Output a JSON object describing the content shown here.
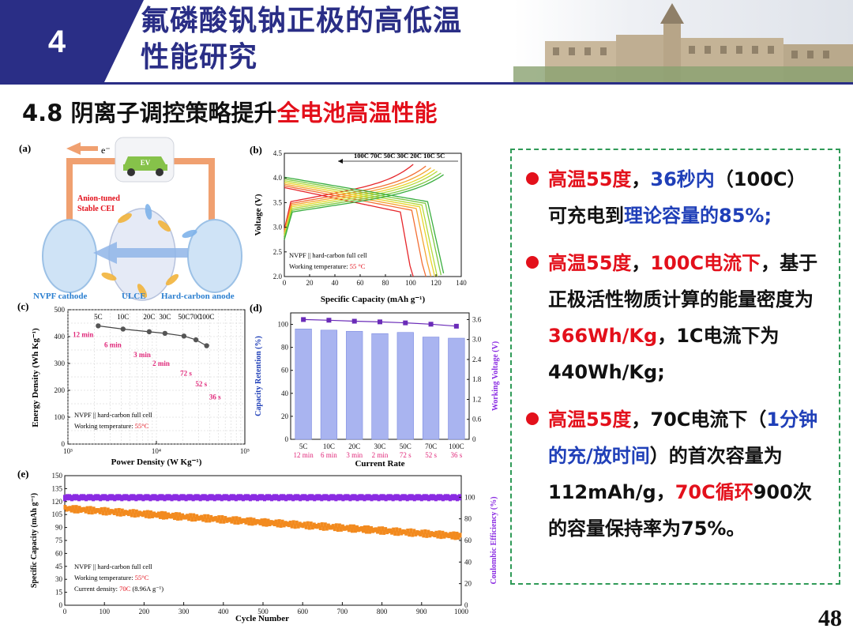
{
  "header": {
    "section_number": "4",
    "title_line1": "氟磷酸钒钠正极的高低温",
    "title_line2": "性能研究"
  },
  "subtitle": {
    "prefix": "4.8 阴离子调控策略提升",
    "highlight": "全电池高温性能"
  },
  "panel_a": {
    "label": "(a)",
    "electron": "e⁻",
    "car_label": "EV",
    "cei_line1": "Anion-tuned",
    "cei_line2": "Stable CEI",
    "cathode_label": "NVPF cathode",
    "electrolyte_label": "ULCE",
    "anode_label": "Hard-carbon anode"
  },
  "panel_b": {
    "label": "(b)",
    "legend": "100C 70C 50C 30C 20C 10C 5C",
    "note1": "NVPF || hard-carbon full cell",
    "note2_prefix": "Working temperature: ",
    "note2_value": "55 °C",
    "xlabel": "Specific Capacity (mAh g⁻¹)",
    "ylabel": "Voltage (V)",
    "xticks": [
      "0",
      "20",
      "40",
      "60",
      "80",
      "100",
      "120",
      "140"
    ],
    "yticks": [
      "2.0",
      "2.5",
      "3.0",
      "3.5",
      "4.0",
      "4.5"
    ]
  },
  "panel_c": {
    "label": "(c)",
    "note1": "NVPF || hard-carbon full cell",
    "note2_prefix": "Working temperature: ",
    "note2_value": "55°C",
    "xlabel": "Power Density (W Kg⁻¹)",
    "ylabel": "Energy Density (Wh Kg⁻¹)",
    "xticks": [
      "10³",
      "10⁴",
      "10⁵"
    ],
    "yticks": [
      "0",
      "100",
      "200",
      "300",
      "400",
      "500"
    ]
  },
  "panel_d": {
    "label": "(d)",
    "xlabel": "Current Rate",
    "ylabel_left": "Capacity Retention (%)",
    "ylabel_right": "Working Voltage (V)",
    "yticks_left": [
      "0",
      "20",
      "40",
      "60",
      "80",
      "100"
    ],
    "yticks_right": [
      "0",
      "0.6",
      "1.2",
      "1.8",
      "2.4",
      "3.0",
      "3.6"
    ]
  },
  "panel_e": {
    "label": "(e)",
    "note1": "NVPF || hard-carbon full cell",
    "note2_prefix": "Working temperature: ",
    "note2_value": "55°C",
    "note3_prefix": "Current density: ",
    "note3_value": "70C",
    "note3_suffix": " (8.96A g⁻¹)",
    "xlabel": "Cycle Number",
    "ylabel_left": "Specific Capacity (mAh g⁻¹)",
    "ylabel_right": "Coulombic Efficiency (%)",
    "xticks": [
      "0",
      "100",
      "200",
      "300",
      "400",
      "500",
      "600",
      "700",
      "800",
      "900",
      "1000"
    ],
    "yticks_left": [
      "0",
      "15",
      "30",
      "45",
      "60",
      "75",
      "90",
      "105",
      "120",
      "135",
      "150"
    ],
    "yticks_right": [
      "0",
      "20",
      "40",
      "60",
      "80",
      "100"
    ]
  },
  "bullets": {
    "b1": {
      "p1": "高温55度",
      "p2": "，",
      "p3": "36秒内",
      "p4": "（100C）可充电到",
      "p5": "理论容量的85%;"
    },
    "b2": {
      "p1": "高温55度",
      "p2": "，",
      "p3": "100C电流下",
      "p4": "，基于正极活性物质计算的能量密度为",
      "p5": "366Wh/Kg",
      "p6": "，1C电流下为440Wh/Kg;"
    },
    "b3": {
      "p1": "高温55度",
      "p2": "，70C电流下（",
      "p3": "1分钟的充/放时间",
      "p4": "）的首次容量为112mAh/g，",
      "p5": "70C循环",
      "p6": "900次的容量保持率为75%。"
    }
  },
  "page_number": "48",
  "colors": {
    "title_blue": "#2a2e86",
    "accent_red": "#e3101b",
    "accent_blue": "#1f3fb8",
    "panel_border": "#2f9a57",
    "bar_fill": "#a9b4f0",
    "voltage_line": "#6a2bb8",
    "capacity_orange": "#f28a1e",
    "ce_purple": "#8a2be2"
  },
  "chart_data": [
    {
      "id": "b",
      "type": "line",
      "xlim": [
        0,
        140
      ],
      "ylim": [
        2.0,
        4.5
      ],
      "series": [
        {
          "name": "100C",
          "color": "#e6262b",
          "capacity": 102
        },
        {
          "name": "70C",
          "color": "#f36f34",
          "capacity": 112
        },
        {
          "name": "50C",
          "color": "#f4a531",
          "capacity": 116
        },
        {
          "name": "30C",
          "color": "#e8d52b",
          "capacity": 119
        },
        {
          "name": "20C",
          "color": "#b5d93a",
          "capacity": 121
        },
        {
          "name": "10C",
          "color": "#7dc840",
          "capacity": 124
        },
        {
          "name": "5C",
          "color": "#3aae3f",
          "capacity": 126
        }
      ]
    },
    {
      "id": "c",
      "type": "scatter",
      "xscale": "log",
      "xlim": [
        1000,
        100000
      ],
      "ylim": [
        0,
        500
      ],
      "points": [
        {
          "rate": "5C",
          "time": "12 min",
          "power": 2200,
          "energy": 440
        },
        {
          "rate": "10C",
          "time": "6 min",
          "power": 4200,
          "energy": 428
        },
        {
          "rate": "20C",
          "time": "3 min",
          "power": 8300,
          "energy": 418
        },
        {
          "rate": "30C",
          "time": "2 min",
          "power": 12500,
          "energy": 412
        },
        {
          "rate": "50C",
          "time": "72 s",
          "power": 20500,
          "energy": 402
        },
        {
          "rate": "70C",
          "time": "52 s",
          "power": 28000,
          "energy": 388
        },
        {
          "rate": "100C",
          "time": "36 s",
          "power": 37000,
          "energy": 366
        }
      ]
    },
    {
      "id": "d",
      "type": "bar",
      "categories": [
        "5C",
        "10C",
        "20C",
        "30C",
        "50C",
        "70C",
        "100C"
      ],
      "category_times": [
        "12 min",
        "6 min",
        "3 min",
        "2 min",
        "72 s",
        "52 s",
        "36 s"
      ],
      "ylim_left": [
        0,
        110
      ],
      "ylim_right": [
        0,
        3.8
      ],
      "series": [
        {
          "axis": "left",
          "values": [
            96,
            95,
            94,
            92,
            93,
            89,
            88
          ]
        },
        {
          "axis": "right",
          "values": [
            3.6,
            3.58,
            3.55,
            3.53,
            3.5,
            3.46,
            3.4
          ]
        }
      ]
    },
    {
      "id": "e",
      "type": "scatter",
      "xlim": [
        0,
        1000
      ],
      "ylim_left": [
        0,
        150
      ],
      "ylim_right": [
        0,
        120
      ],
      "series": [
        {
          "axis": "left",
          "start": 112,
          "end": 80
        },
        {
          "axis": "right",
          "values_level": 100
        }
      ]
    }
  ]
}
